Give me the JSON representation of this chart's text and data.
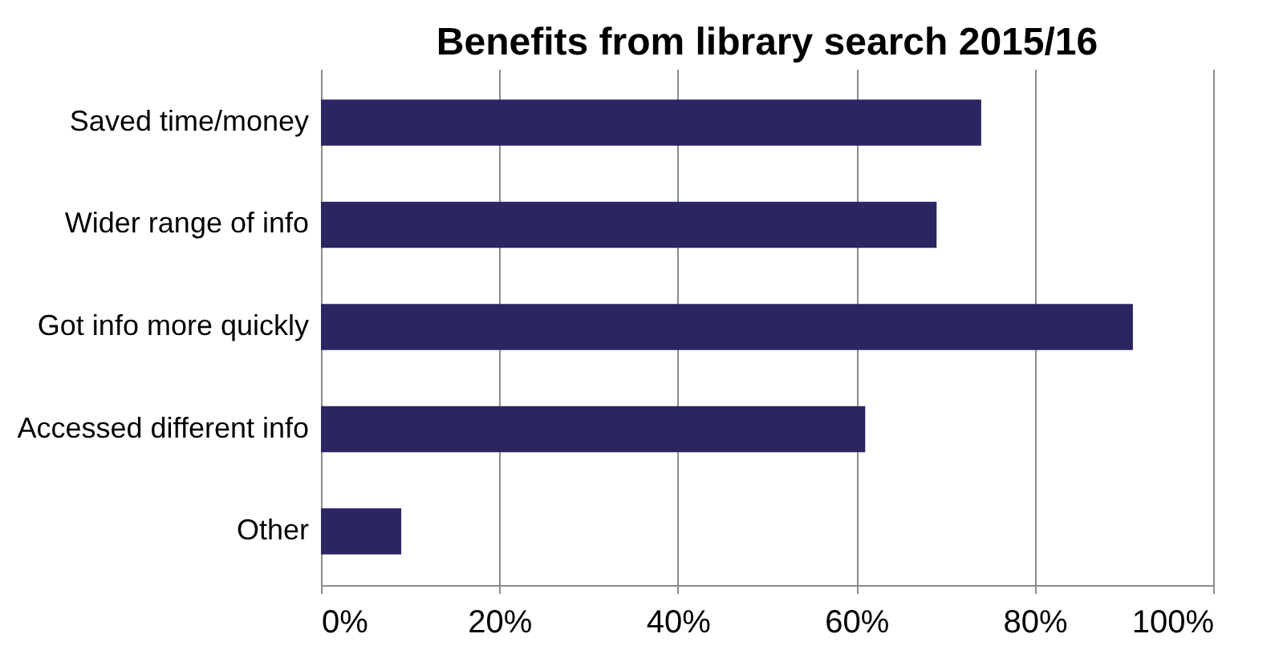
{
  "chart_data": {
    "type": "bar",
    "orientation": "horizontal",
    "title": "Benefits from library search 2015/16",
    "categories": [
      "Saved time/money",
      "Wider range of info",
      "Got info more quickly",
      "Accessed different info",
      "Other"
    ],
    "values": [
      74,
      69,
      91,
      61,
      9
    ],
    "color": "#2b2661",
    "xlim": [
      0,
      100
    ],
    "xticks": [
      {
        "value": 0,
        "label": "0%"
      },
      {
        "value": 20,
        "label": "20%"
      },
      {
        "value": 40,
        "label": "40%"
      },
      {
        "value": 60,
        "label": "60%"
      },
      {
        "value": 80,
        "label": "80%"
      },
      {
        "value": 100,
        "label": "100%"
      }
    ],
    "grid": "x"
  }
}
